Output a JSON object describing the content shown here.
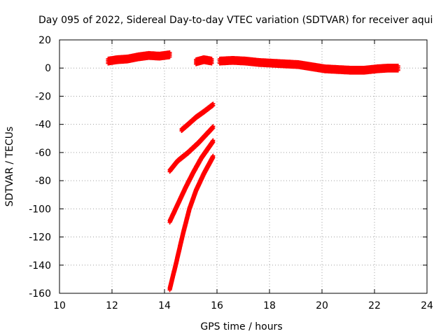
{
  "chart_data": {
    "type": "scatter",
    "title": "Day 095 of 2022, Sidereal Day-to-day VTEC variation (SDTVAR) for receiver aqui",
    "xlabel": "GPS time / hours",
    "ylabel": "SDTVAR / TECUs",
    "xlim": [
      10,
      24
    ],
    "ylim": [
      -160,
      20
    ],
    "xticks": [
      10,
      12,
      14,
      16,
      18,
      20,
      22,
      24
    ],
    "yticks": [
      20,
      0,
      -20,
      -40,
      -60,
      -80,
      -100,
      -120,
      -140,
      -160
    ],
    "grid": true,
    "marker_color": "#ff0000",
    "series": [
      {
        "points": [
          [
            11.85,
            5
          ],
          [
            12.2,
            6
          ],
          [
            12.6,
            6.5
          ],
          [
            13.0,
            8
          ],
          [
            13.4,
            9
          ],
          [
            13.8,
            8.5
          ],
          [
            14.2,
            9.5
          ]
        ],
        "band": 3
      },
      {
        "points": [
          [
            15.2,
            4.5
          ],
          [
            15.5,
            6
          ],
          [
            15.8,
            5
          ]
        ],
        "band": 3
      },
      {
        "points": [
          [
            16.1,
            5
          ],
          [
            16.6,
            5.5
          ],
          [
            17.1,
            5
          ],
          [
            17.6,
            4
          ],
          [
            18.1,
            3.5
          ],
          [
            18.6,
            3
          ],
          [
            19.1,
            2.5
          ],
          [
            19.6,
            1
          ],
          [
            20.1,
            -0.5
          ],
          [
            20.6,
            -1
          ],
          [
            21.1,
            -1.5
          ],
          [
            21.6,
            -1.5
          ],
          [
            22.1,
            -0.5
          ],
          [
            22.5,
            0
          ],
          [
            22.9,
            0
          ]
        ],
        "band": 3
      },
      {
        "points": [
          [
            14.2,
            -73
          ],
          [
            14.5,
            -66
          ],
          [
            14.9,
            -60
          ],
          [
            15.3,
            -53
          ],
          [
            15.6,
            -47
          ],
          [
            15.85,
            -42
          ]
        ],
        "band": 1.5
      },
      {
        "points": [
          [
            14.65,
            -44
          ],
          [
            14.9,
            -40
          ],
          [
            15.2,
            -35
          ],
          [
            15.5,
            -31
          ],
          [
            15.85,
            -26
          ]
        ],
        "band": 1.5
      },
      {
        "points": [
          [
            14.2,
            -109
          ],
          [
            14.5,
            -97
          ],
          [
            14.8,
            -85
          ],
          [
            15.1,
            -74
          ],
          [
            15.4,
            -64
          ],
          [
            15.7,
            -56
          ],
          [
            15.85,
            -52
          ]
        ],
        "band": 1.5
      },
      {
        "points": [
          [
            14.2,
            -157
          ],
          [
            14.45,
            -138
          ],
          [
            14.7,
            -118
          ],
          [
            14.95,
            -100
          ],
          [
            15.2,
            -87
          ],
          [
            15.5,
            -75
          ],
          [
            15.85,
            -63
          ]
        ],
        "band": 1.5
      }
    ]
  }
}
